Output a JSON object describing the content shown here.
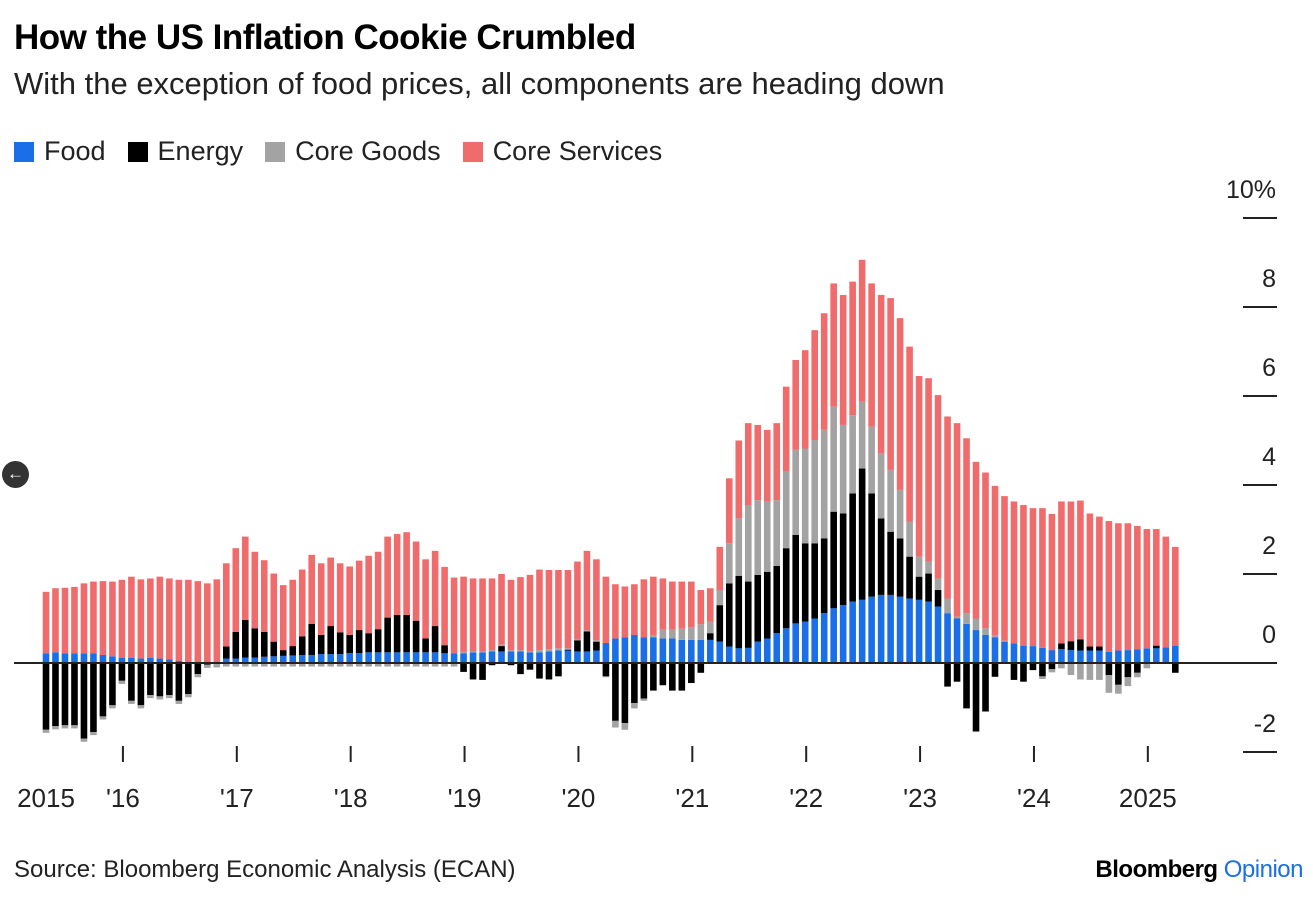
{
  "title": "How the US Inflation Cookie Crumbled",
  "subtitle": "With the exception of food prices, all components are heading down",
  "source": "Source: Bloomberg Economic Analysis (ECAN)",
  "brand": {
    "name": "Bloomberg",
    "section": "Opinion"
  },
  "nav_icon": "arrow-left-icon",
  "colors": {
    "food": "#1a6fe8",
    "energy": "#000000",
    "core_goods": "#a3a3a3",
    "core_services": "#f06b6b",
    "brand_accent": "#1a6fe8"
  },
  "chart_data": {
    "type": "bar",
    "stacked": true,
    "title": "How the US Inflation Cookie Crumbled",
    "subtitle": "With the exception of food prices, all components are heading down",
    "ylabel": "",
    "ylim": [
      -2.5,
      10
    ],
    "y_ticks": [
      {
        "value": 10,
        "label": "10%"
      },
      {
        "value": 8,
        "label": "8"
      },
      {
        "value": 6,
        "label": "6"
      },
      {
        "value": 4,
        "label": "4"
      },
      {
        "value": 2,
        "label": "2"
      },
      {
        "value": 0,
        "label": "0"
      },
      {
        "value": -2,
        "label": "-2"
      }
    ],
    "x_ticks": [
      {
        "index": 0,
        "label": "2015",
        "tick": false
      },
      {
        "index": 8,
        "label": "'16",
        "tick": true
      },
      {
        "index": 20,
        "label": "'17",
        "tick": true
      },
      {
        "index": 32,
        "label": "'18",
        "tick": true
      },
      {
        "index": 44,
        "label": "'19",
        "tick": true
      },
      {
        "index": 56,
        "label": "'20",
        "tick": true
      },
      {
        "index": 68,
        "label": "'21",
        "tick": true
      },
      {
        "index": 80,
        "label": "'22",
        "tick": true
      },
      {
        "index": 92,
        "label": "'23",
        "tick": true
      },
      {
        "index": 104,
        "label": "'24",
        "tick": true
      },
      {
        "index": 116,
        "label": "2025",
        "tick": true
      }
    ],
    "legend_position": "top-left",
    "series": [
      {
        "name": "Food",
        "key": "food",
        "values": [
          0.22,
          0.24,
          0.22,
          0.22,
          0.22,
          0.22,
          0.18,
          0.15,
          0.12,
          0.12,
          0.1,
          0.12,
          0.1,
          0.08,
          0.05,
          0.03,
          0.02,
          0.02,
          0.03,
          0.1,
          0.1,
          0.12,
          0.12,
          0.14,
          0.15,
          0.16,
          0.17,
          0.18,
          0.18,
          0.2,
          0.2,
          0.2,
          0.22,
          0.22,
          0.24,
          0.24,
          0.24,
          0.24,
          0.24,
          0.24,
          0.24,
          0.24,
          0.22,
          0.22,
          0.22,
          0.24,
          0.24,
          0.26,
          0.26,
          0.26,
          0.26,
          0.24,
          0.24,
          0.26,
          0.28,
          0.28,
          0.26,
          0.26,
          0.28,
          0.45,
          0.55,
          0.58,
          0.63,
          0.58,
          0.58,
          0.55,
          0.55,
          0.52,
          0.52,
          0.52,
          0.52,
          0.48,
          0.37,
          0.33,
          0.34,
          0.48,
          0.55,
          0.67,
          0.78,
          0.89,
          0.93,
          1.0,
          1.12,
          1.23,
          1.3,
          1.38,
          1.42,
          1.49,
          1.53,
          1.53,
          1.49,
          1.45,
          1.42,
          1.38,
          1.27,
          1.12,
          1.0,
          0.88,
          0.74,
          0.63,
          0.58,
          0.48,
          0.44,
          0.39,
          0.38,
          0.34,
          0.29,
          0.31,
          0.29,
          0.28,
          0.28,
          0.28,
          0.25,
          0.28,
          0.29,
          0.31,
          0.33,
          0.33,
          0.35,
          0.39
        ]
      },
      {
        "name": "Energy",
        "key": "energy",
        "values": [
          -1.5,
          -1.42,
          -1.4,
          -1.4,
          -1.7,
          -1.55,
          -1.2,
          -0.95,
          -0.4,
          -0.85,
          -0.95,
          -0.72,
          -0.75,
          -0.72,
          -0.85,
          -0.7,
          -0.25,
          -0.04,
          0,
          0.27,
          0.6,
          0.85,
          0.66,
          0.56,
          0.33,
          0.13,
          0.21,
          0.42,
          0.7,
          0.43,
          0.63,
          0.49,
          0.41,
          0.52,
          0.43,
          0.52,
          0.78,
          0.84,
          0.84,
          0.71,
          0.31,
          0.59,
          0.18,
          0,
          -0.2,
          -0.37,
          -0.38,
          -0.05,
          0.12,
          -0.05,
          -0.25,
          -0.15,
          -0.35,
          -0.37,
          -0.3,
          0.02,
          0.25,
          0.45,
          0.2,
          -0.3,
          -1.3,
          -1.35,
          -0.9,
          -0.8,
          -0.62,
          -0.5,
          -0.62,
          -0.62,
          -0.45,
          -0.22,
          0.15,
          0.82,
          1.42,
          1.63,
          1.49,
          1.5,
          1.5,
          1.51,
          1.8,
          1.99,
          1.76,
          1.69,
          1.68,
          2.17,
          2.06,
          2.43,
          2.95,
          2.32,
          1.72,
          1.42,
          1.31,
          0.94,
          0.52,
          0.63,
          0.37,
          -0.53,
          -0.42,
          -1.02,
          -1.54,
          -1.09,
          -0.31,
          0,
          -0.38,
          -0.42,
          -0.16,
          -0.3,
          -0.14,
          0.13,
          0.2,
          0.25,
          0.09,
          0.09,
          -0.27,
          -0.49,
          -0.32,
          -0.22,
          0,
          0.06,
          0,
          -0.22
        ]
      },
      {
        "name": "Core Goods",
        "key": "core_goods",
        "values": [
          -0.07,
          -0.07,
          -0.07,
          -0.07,
          -0.07,
          -0.07,
          -0.07,
          -0.07,
          -0.07,
          -0.07,
          -0.07,
          -0.07,
          -0.07,
          -0.07,
          -0.07,
          -0.07,
          -0.07,
          -0.07,
          -0.1,
          -0.08,
          -0.08,
          -0.08,
          -0.08,
          -0.08,
          -0.08,
          -0.08,
          -0.08,
          -0.08,
          -0.08,
          -0.08,
          -0.08,
          -0.08,
          -0.08,
          -0.08,
          -0.08,
          -0.08,
          -0.08,
          -0.08,
          -0.08,
          -0.08,
          -0.08,
          -0.08,
          -0.08,
          -0.08,
          0.03,
          0.03,
          0.03,
          0.03,
          0.03,
          0.03,
          0.03,
          0.03,
          0.05,
          0.05,
          0.05,
          0.03,
          0.03,
          0.03,
          0.03,
          -0.02,
          -0.15,
          -0.15,
          -0.12,
          -0.05,
          0.05,
          0.2,
          0.2,
          0.25,
          0.28,
          0.35,
          0.26,
          0.34,
          0.9,
          1.29,
          1.72,
          1.68,
          1.58,
          1.48,
          1.72,
          1.91,
          2.13,
          2.32,
          2.44,
          2.36,
          1.99,
          1.76,
          1.5,
          1.5,
          1.46,
          1.39,
          1.09,
          0.79,
          0.45,
          0.27,
          0.26,
          0.33,
          0.04,
          0.24,
          0.26,
          0.15,
          0.05,
          0.02,
          0,
          0,
          0,
          -0.06,
          -0.07,
          -0.12,
          -0.27,
          -0.37,
          -0.38,
          -0.38,
          -0.4,
          -0.2,
          -0.2,
          -0.1,
          -0.12,
          0,
          0,
          0
        ]
      },
      {
        "name": "Core Services",
        "key": "core_services",
        "values": [
          1.38,
          1.44,
          1.47,
          1.49,
          1.57,
          1.61,
          1.66,
          1.68,
          1.75,
          1.82,
          1.78,
          1.78,
          1.84,
          1.82,
          1.82,
          1.84,
          1.82,
          1.77,
          1.85,
          1.87,
          1.88,
          1.87,
          1.72,
          1.61,
          1.53,
          1.46,
          1.49,
          1.5,
          1.55,
          1.61,
          1.54,
          1.55,
          1.54,
          1.56,
          1.74,
          1.74,
          1.82,
          1.82,
          1.86,
          1.78,
          1.78,
          1.69,
          1.76,
          1.7,
          1.69,
          1.63,
          1.63,
          1.61,
          1.59,
          1.58,
          1.64,
          1.71,
          1.81,
          1.78,
          1.76,
          1.76,
          1.74,
          1.78,
          1.82,
          1.49,
          1.22,
          1.14,
          1.14,
          1.3,
          1.31,
          1.15,
          1.08,
          1.06,
          1.03,
          0.77,
          0.75,
          0.97,
          1.46,
          1.75,
          1.84,
          1.69,
          1.61,
          1.73,
          1.91,
          2.02,
          2.21,
          2.47,
          2.62,
          2.77,
          2.92,
          3.0,
          3.19,
          3.22,
          3.56,
          3.86,
          3.86,
          3.93,
          4.06,
          4.12,
          4.12,
          4.09,
          4.35,
          3.93,
          3.52,
          3.5,
          3.35,
          3.25,
          3.19,
          3.16,
          3.1,
          3.14,
          3.06,
          3.19,
          3.14,
          3.12,
          2.99,
          2.92,
          2.94,
          2.86,
          2.85,
          2.77,
          2.68,
          2.62,
          2.49,
          2.22
        ]
      }
    ]
  }
}
